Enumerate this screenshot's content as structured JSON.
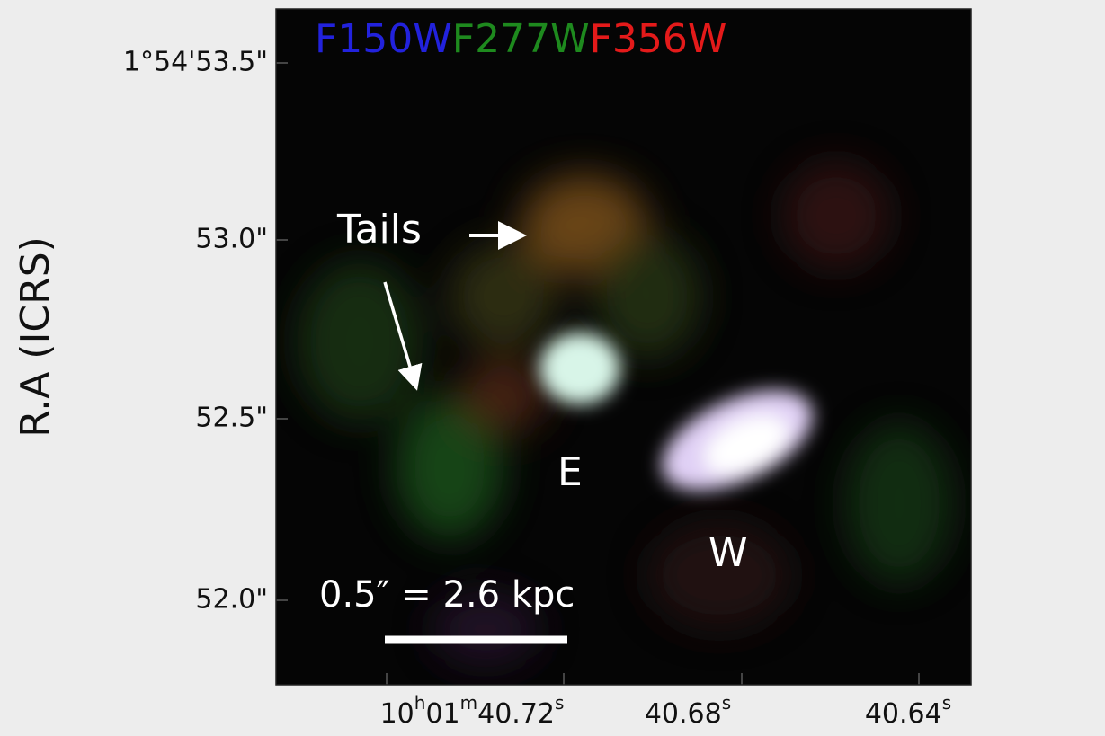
{
  "filters": [
    "F150W",
    "F277W",
    "F356W"
  ],
  "y_axis_label": "R.A (ICRS)",
  "y_ticks": [
    "1°54'53.5\"",
    "53.0\"",
    "52.5\"",
    "52.0\""
  ],
  "x_ticks": [
    [
      "10",
      "h",
      "01",
      "m",
      "40.72",
      "s"
    ],
    [
      "40.68",
      "s"
    ],
    [
      "40.64",
      "s"
    ]
  ],
  "annotations": {
    "tails": "Tails",
    "east": "E",
    "west": "W",
    "scale": "0.5″ = 2.6 kpc"
  }
}
